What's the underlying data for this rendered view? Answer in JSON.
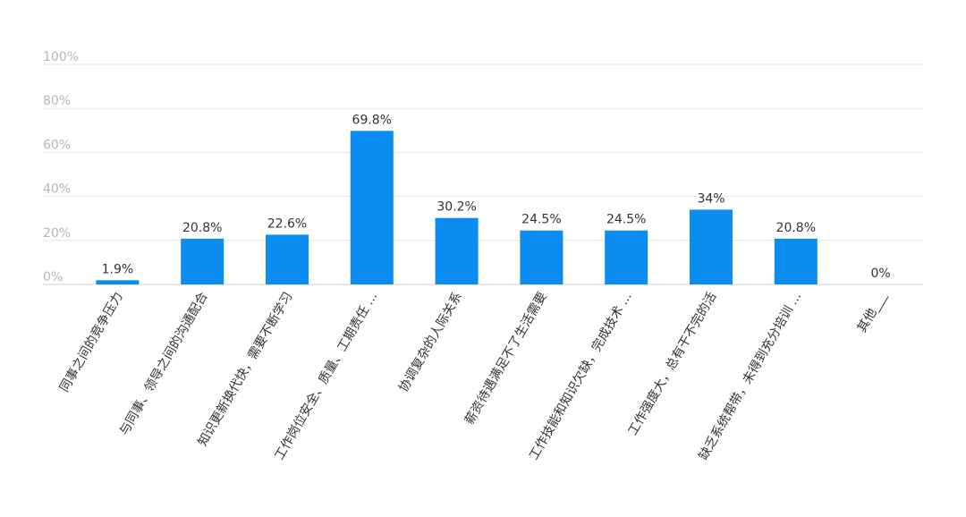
{
  "chart_data": {
    "type": "bar",
    "categories": [
      "同事之间的竞争压力",
      "与同事、领导之间的沟通配合",
      "知识更新换代快，需要不断学习",
      "工作岗位安全、质量、工期责任 ...",
      "协调复杂的人际关系",
      "薪资待遇满足不了生活需要",
      "工作技能和知识欠缺，完成技术 ...",
      "工作强度大，总有干不完的活",
      "缺乏系统帮带，未得到充分培训 ...",
      "其他___"
    ],
    "values": [
      1.9,
      20.8,
      22.6,
      69.8,
      30.2,
      24.5,
      24.5,
      34,
      20.8,
      0
    ],
    "value_labels": [
      "1.9%",
      "20.8%",
      "22.6%",
      "69.8%",
      "30.2%",
      "24.5%",
      "24.5%",
      "34%",
      "20.8%",
      "0%"
    ],
    "y_ticks": [
      "0%",
      "20%",
      "40%",
      "60%",
      "80%",
      "100%"
    ],
    "ylim": [
      0,
      100
    ],
    "grid": true,
    "bar_color": "#0a8cf0",
    "grid_color": "#e6e6e6",
    "tick_color": "#b6b6b6",
    "label_color": "#333333"
  }
}
